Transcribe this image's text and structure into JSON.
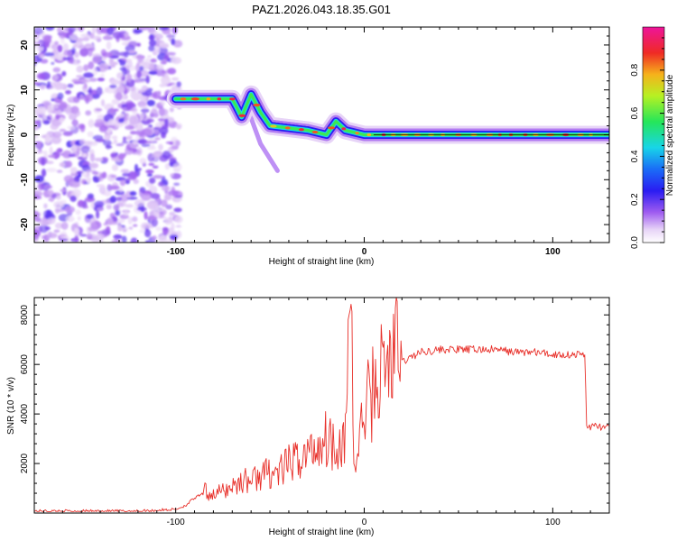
{
  "figure": {
    "title": "PAZ1.2026.043.18.35.G01"
  },
  "chart_data": [
    {
      "type": "heatmap",
      "title": "PAZ1.2026.043.18.35.G01",
      "xlabel": "Height of straight line (km)",
      "ylabel": "Frequency (Hz)",
      "xlim": [
        -175,
        130
      ],
      "ylim": [
        -24,
        24
      ],
      "xticks": [
        -100,
        0,
        100
      ],
      "yticks": [
        -20,
        -10,
        0,
        10,
        20
      ],
      "colorbar": {
        "label": "Normalized spectral amplitude",
        "range": [
          0,
          1
        ],
        "ticks": [
          0.0,
          0.2,
          0.4,
          0.6,
          0.8
        ]
      },
      "features": {
        "noise_region_x": [
          -175,
          -100
        ],
        "ridge": [
          {
            "x": -100,
            "y": 8
          },
          {
            "x": -90,
            "y": 8
          },
          {
            "x": -80,
            "y": 8
          },
          {
            "x": -70,
            "y": 8
          },
          {
            "x": -65,
            "y": 4
          },
          {
            "x": -60,
            "y": 9
          },
          {
            "x": -55,
            "y": 5
          },
          {
            "x": -50,
            "y": 2
          },
          {
            "x": -40,
            "y": 1.5
          },
          {
            "x": -30,
            "y": 1
          },
          {
            "x": -20,
            "y": 0
          },
          {
            "x": -15,
            "y": 3
          },
          {
            "x": -10,
            "y": 1
          },
          {
            "x": 0,
            "y": 0
          },
          {
            "x": 50,
            "y": 0
          },
          {
            "x": 100,
            "y": 0
          },
          {
            "x": 130,
            "y": 0
          }
        ]
      }
    },
    {
      "type": "line",
      "xlabel": "Height of straight line (km)",
      "ylabel": "SNR (10 * v/v)",
      "xlim": [
        -175,
        130
      ],
      "ylim": [
        0,
        8700
      ],
      "xticks": [
        -100,
        0,
        100
      ],
      "yticks": [
        2000,
        4000,
        6000,
        8000
      ],
      "color": "#e8302a",
      "series": [
        {
          "name": "SNR",
          "x": [
            -175,
            -160,
            -140,
            -120,
            -100,
            -95,
            -90,
            -85,
            -80,
            -75,
            -70,
            -65,
            -60,
            -55,
            -50,
            -45,
            -40,
            -35,
            -30,
            -25,
            -20,
            -15,
            -10,
            -8,
            -5,
            0,
            5,
            10,
            15,
            20,
            30,
            40,
            50,
            60,
            70,
            80,
            90,
            100,
            110,
            117,
            118,
            125,
            130
          ],
          "y": [
            80,
            80,
            80,
            80,
            150,
            300,
            600,
            800,
            700,
            800,
            1000,
            1200,
            1200,
            1400,
            1500,
            1500,
            1800,
            2000,
            2200,
            2500,
            2800,
            2600,
            2800,
            6000,
            1500,
            3800,
            4600,
            5300,
            5800,
            6100,
            6500,
            6600,
            6600,
            6600,
            6600,
            6500,
            6500,
            6400,
            6400,
            6400,
            3500,
            3500,
            3400
          ]
        }
      ]
    }
  ]
}
